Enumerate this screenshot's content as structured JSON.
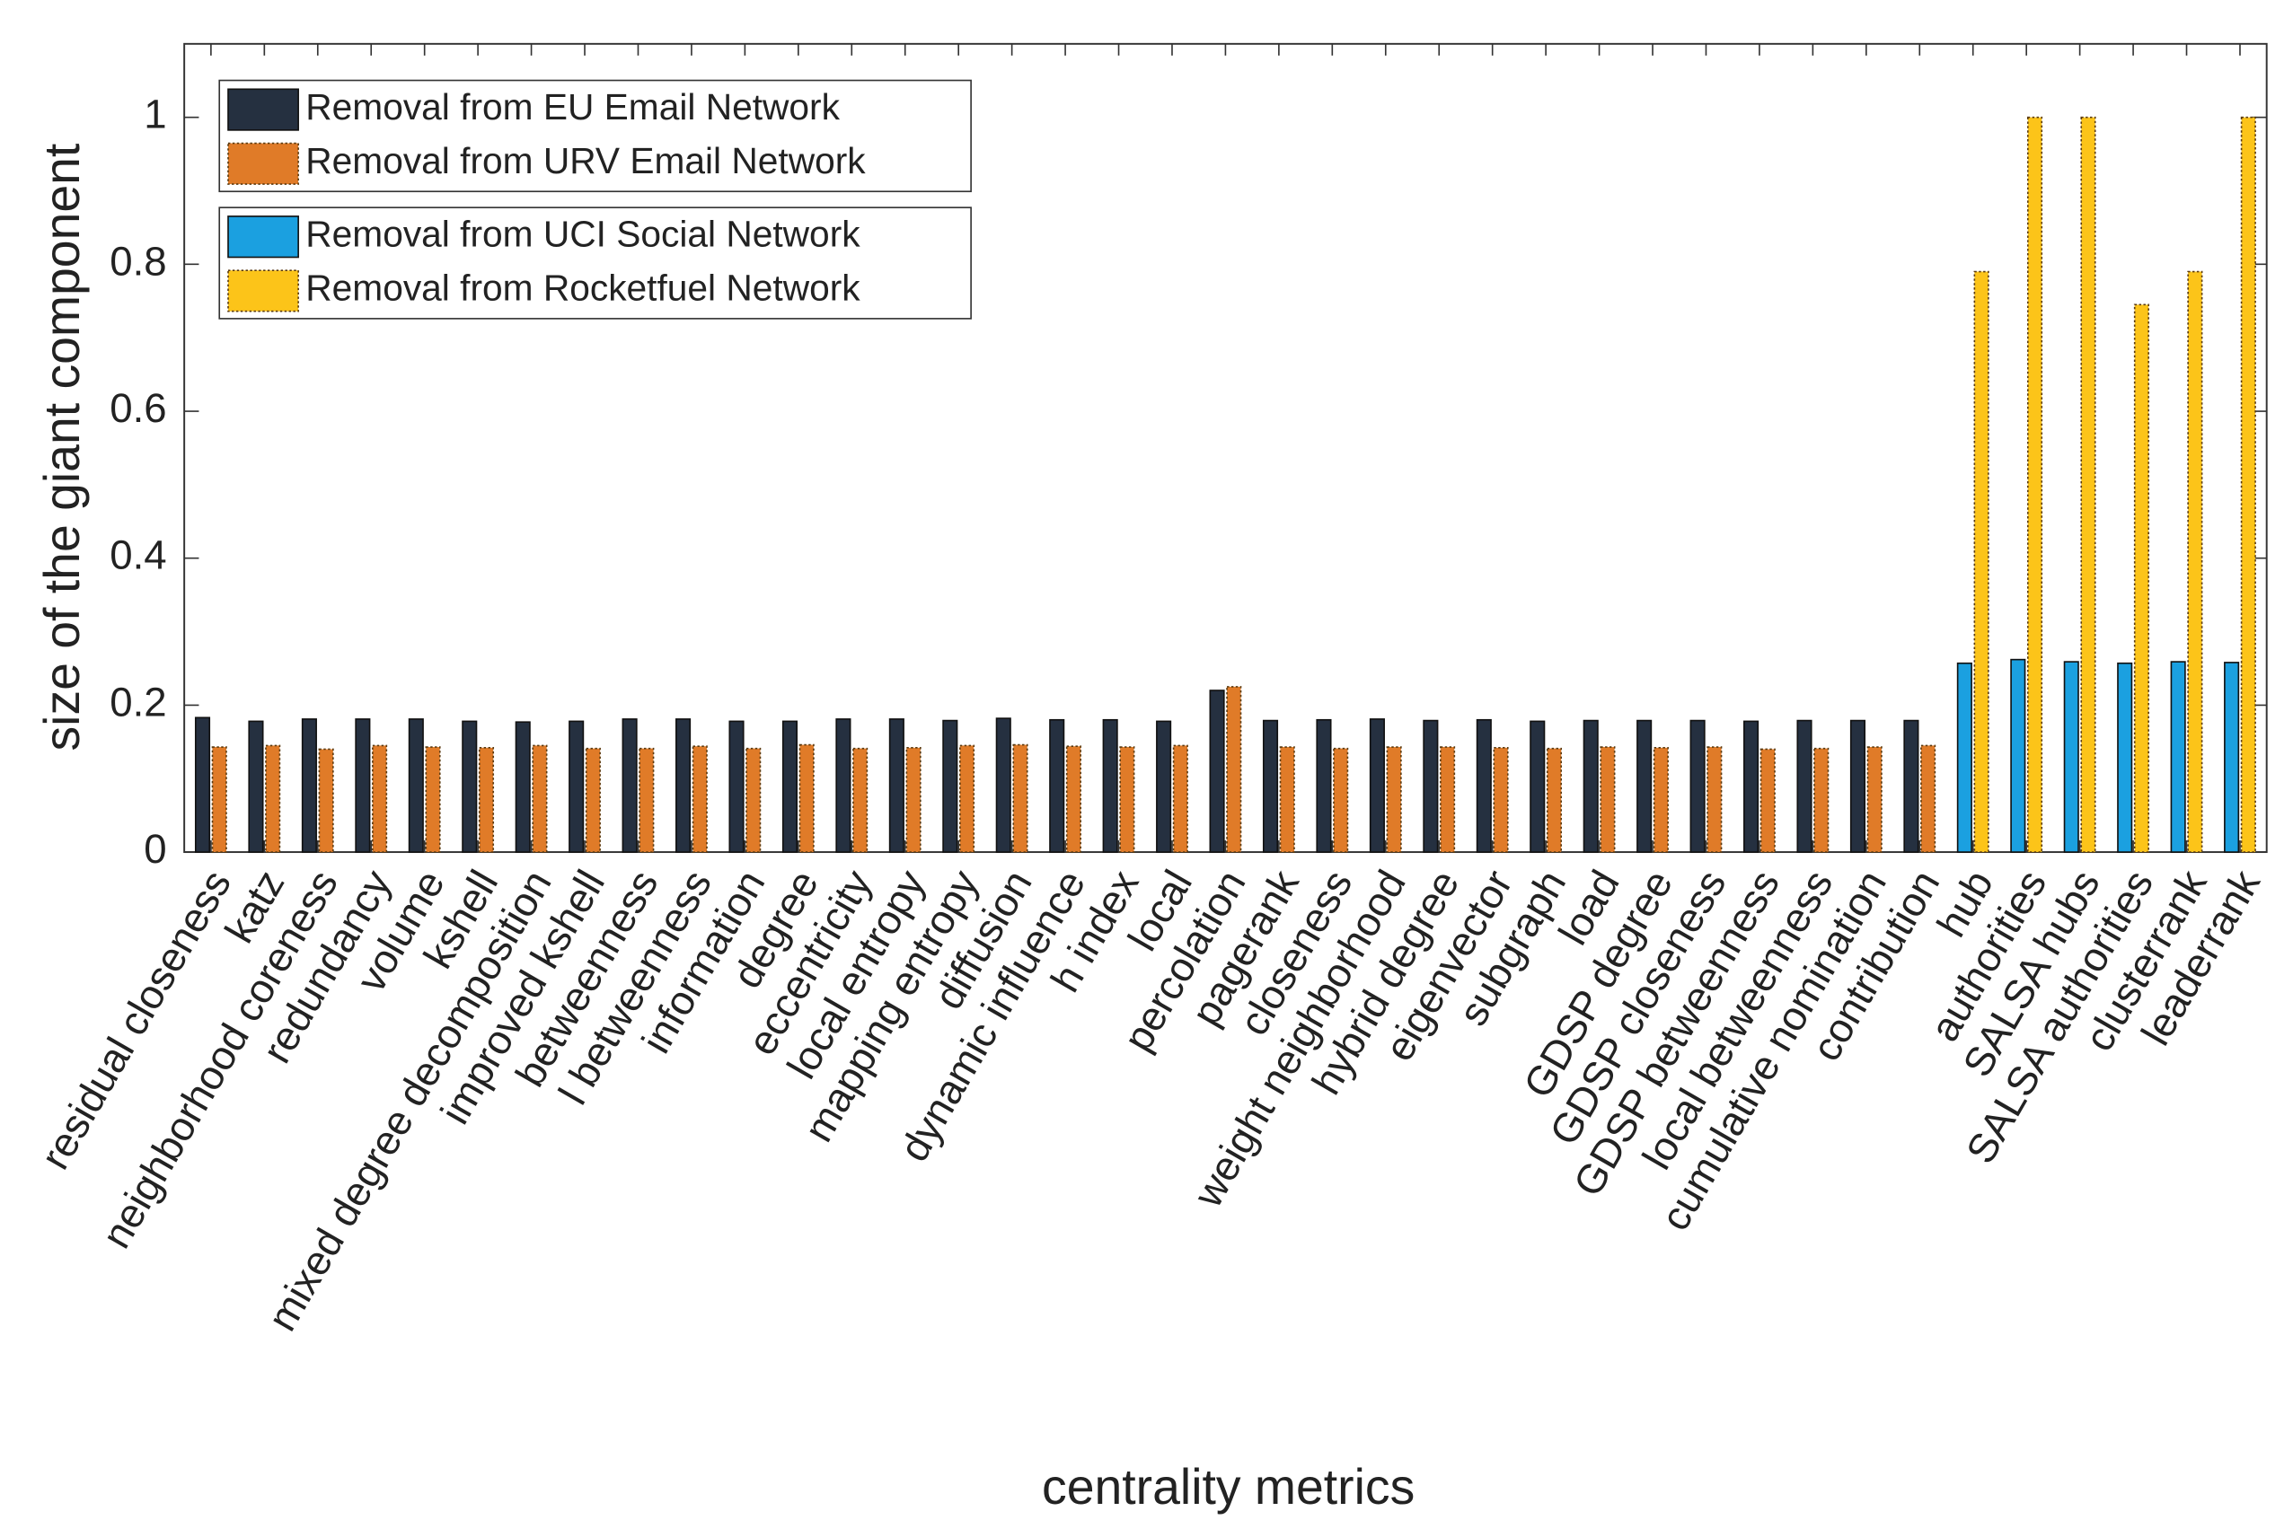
{
  "chart_data": {
    "type": "bar",
    "xlabel": "centrality metrics",
    "ylabel": "size of the giant component",
    "categories": [
      "residual closeness",
      "katz",
      "neighborhood coreness",
      "redundancy",
      "volume",
      "kshell",
      "mixed degree decomposition",
      "improved kshell",
      "betweenness",
      "l betweenness",
      "information",
      "degree",
      "eccentricity",
      "local entropy",
      "mapping entropy",
      "diffusion",
      "dynamic influence",
      "h index",
      "local",
      "percolation",
      "pagerank",
      "closeness",
      "weight neighborhood",
      "hybrid degree",
      "eigenvector",
      "subgraph",
      "load",
      "GDSP degree",
      "GDSP closeness",
      "GDSP betweenness",
      "local betweenness",
      "cumulative nomination",
      "contribution",
      "hub",
      "authorities",
      "SALSA hubs",
      "SALSA authorities",
      "clusterrank",
      "leaderrank"
    ],
    "series": [
      {
        "name": "Removal from EU Email Network",
        "color": "#253040",
        "values": [
          0.183,
          0.178,
          0.181,
          0.181,
          0.181,
          0.178,
          0.177,
          0.178,
          0.181,
          0.181,
          0.178,
          0.178,
          0.181,
          0.181,
          0.179,
          0.182,
          0.18,
          0.18,
          0.178,
          0.22,
          0.179,
          0.18,
          0.181,
          0.179,
          0.18,
          0.178,
          0.179,
          0.179,
          0.179,
          0.178,
          0.179,
          0.179,
          0.179,
          null,
          null,
          null,
          null,
          null,
          null
        ]
      },
      {
        "name": "Removal from URV Email Network",
        "color": "#e07b28",
        "values": [
          0.143,
          0.145,
          0.14,
          0.145,
          0.143,
          0.142,
          0.145,
          0.141,
          0.141,
          0.144,
          0.141,
          0.146,
          0.141,
          0.142,
          0.145,
          0.146,
          0.144,
          0.143,
          0.145,
          0.225,
          0.143,
          0.141,
          0.143,
          0.143,
          0.142,
          0.141,
          0.143,
          0.142,
          0.143,
          0.14,
          0.141,
          0.143,
          0.145,
          null,
          null,
          null,
          null,
          null,
          null
        ]
      },
      {
        "name": "Removal from UCI Social Network",
        "color": "#1ba0e0",
        "values": [
          null,
          null,
          null,
          null,
          null,
          null,
          null,
          null,
          null,
          null,
          null,
          null,
          null,
          null,
          null,
          null,
          null,
          null,
          null,
          null,
          null,
          null,
          null,
          null,
          null,
          null,
          null,
          null,
          null,
          null,
          null,
          null,
          null,
          0.257,
          0.262,
          0.259,
          0.257,
          0.259,
          0.258
        ]
      },
      {
        "name": "Removal from Rocketfuel Network",
        "color": "#fcc419",
        "values": [
          null,
          null,
          null,
          null,
          null,
          null,
          null,
          null,
          null,
          null,
          null,
          null,
          null,
          null,
          null,
          null,
          null,
          null,
          null,
          null,
          null,
          null,
          null,
          null,
          null,
          null,
          null,
          null,
          null,
          null,
          null,
          null,
          null,
          0.79,
          1.0,
          1.0,
          0.745,
          0.79,
          1.0
        ]
      }
    ],
    "ylim": [
      0,
      1.1
    ],
    "yticks": [
      0,
      0.2,
      0.4,
      0.6,
      0.8,
      1
    ]
  }
}
